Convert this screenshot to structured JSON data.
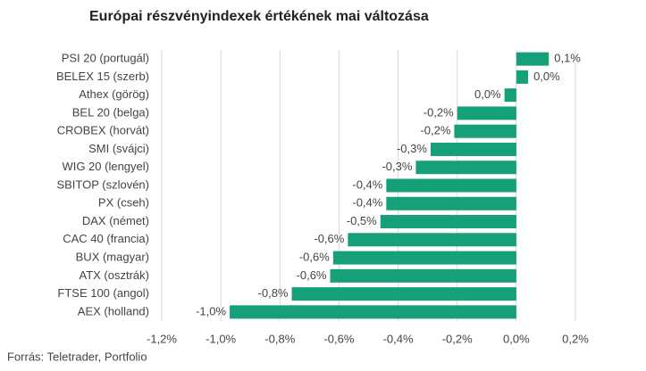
{
  "chart_data": {
    "type": "barh",
    "title": "Európai részvényindexek értékének mai változása",
    "categories": [
      "PSI 20 (portugál)",
      "BELEX 15 (szerb)",
      "Athex (görög)",
      "BEL 20 (belga)",
      "CROBEX (horvát)",
      "SMI (svájci)",
      "WIG 20 (lengyel)",
      "SBITOP (szlovén)",
      "PX (cseh)",
      "DAX (német)",
      "CAC 40 (francia)",
      "BUX (magyar)",
      "ATX (osztrák)",
      "FTSE 100 (angol)",
      "AEX (holland)"
    ],
    "values": [
      0.11,
      0.04,
      -0.04,
      -0.2,
      -0.21,
      -0.29,
      -0.34,
      -0.44,
      -0.44,
      -0.46,
      -0.57,
      -0.62,
      -0.63,
      -0.76,
      -0.97
    ],
    "value_labels": [
      "0,1%",
      "0,0%",
      "0,0%",
      "-0,2%",
      "-0,2%",
      "-0,3%",
      "-0,3%",
      "-0,4%",
      "-0,4%",
      "-0,5%",
      "-0,6%",
      "-0,6%",
      "-0,6%",
      "-0,8%",
      "-1,0%"
    ],
    "color": "#15a07a",
    "xlim": [
      -1.2,
      0.2
    ],
    "xticks": [
      {
        "value": -1.2,
        "label": "-1,2%"
      },
      {
        "value": -1.0,
        "label": "-1,0%"
      },
      {
        "value": -0.8,
        "label": "-0,8%"
      },
      {
        "value": -0.6,
        "label": "-0,6%"
      },
      {
        "value": -0.4,
        "label": "-0,4%"
      },
      {
        "value": -0.2,
        "label": "-0,2%"
      },
      {
        "value": 0,
        "label": "0,0%"
      },
      {
        "value": 0.2,
        "label": "0,2%"
      }
    ],
    "grid": true,
    "source": "Forrás: Teletrader, Portfolio"
  }
}
